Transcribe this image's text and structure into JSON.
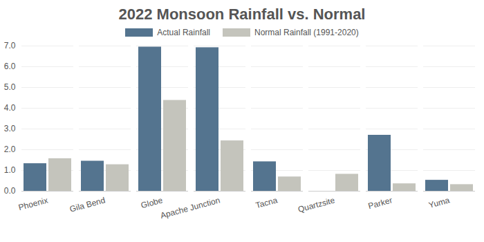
{
  "chart_data": {
    "type": "bar",
    "title": "2022 Monsoon Rainfall vs. Normal",
    "categories": [
      "Phoenix",
      "Gila Bend",
      "Globe",
      "Apache Junction",
      "Tacna",
      "Quartzsite",
      "Parker",
      "Yuma"
    ],
    "series": [
      {
        "name": "Actual Rainfall",
        "color": "#54748f",
        "values": [
          1.33,
          1.45,
          6.95,
          6.92,
          1.42,
          0,
          2.7,
          0.53
        ]
      },
      {
        "name": "Normal Rainfall (1991-2020)",
        "color": "#c4c4bc",
        "values": [
          1.57,
          1.28,
          4.38,
          2.43,
          0.69,
          0.82,
          0.36,
          0.32
        ]
      }
    ],
    "ylim": [
      0,
      7
    ],
    "yticks": [
      0,
      1,
      2,
      3,
      4,
      5,
      6,
      7
    ],
    "grid": true,
    "legend": "top"
  }
}
